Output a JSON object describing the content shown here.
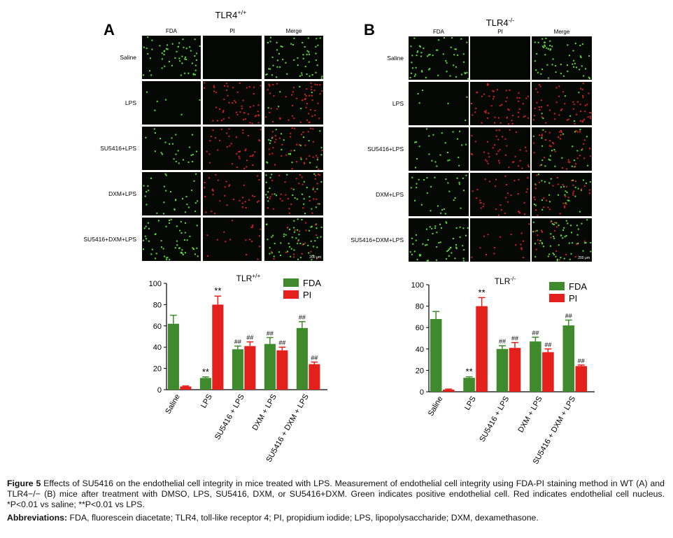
{
  "panels": [
    {
      "label": "A",
      "title": "TLR4",
      "title_sup": "+/+",
      "columns": [
        "FDA",
        "PI",
        "Merge"
      ],
      "rows": [
        "Saline",
        "LPS",
        "SU5416+LPS",
        "DXM+LPS",
        "SU5416+DXM+LPS"
      ],
      "scale_bar": "200 μm"
    },
    {
      "label": "B",
      "title": "TLR4",
      "title_sup": "-/-",
      "columns": [
        "FDA",
        "PI",
        "Merge"
      ],
      "rows": [
        "Saline",
        "LPS",
        "SU5416+LPS",
        "DXM+LPS",
        "SU5416+DXM+LPS"
      ],
      "scale_bar": "200 μm"
    }
  ],
  "chart_data": [
    {
      "type": "bar",
      "title": "TLR",
      "title_sup": "+/+",
      "categories": [
        "Saline",
        "LPS",
        "SU5416 + LPS",
        "DXM + LPS",
        "SU5416 + DXM + LPS"
      ],
      "series": [
        {
          "name": "FDA",
          "color": "#3f8a2c",
          "values": [
            62,
            11,
            38,
            43,
            58
          ],
          "errors": [
            8,
            1,
            3,
            6,
            6
          ],
          "annotations": [
            null,
            "**",
            "##",
            "##",
            "##"
          ]
        },
        {
          "name": "PI",
          "color": "#e3201b",
          "values": [
            3,
            80,
            41,
            37,
            24
          ],
          "errors": [
            0.5,
            8,
            4,
            3,
            2
          ],
          "annotations": [
            null,
            "**",
            "##",
            "##",
            "##"
          ]
        }
      ],
      "ylim": [
        0,
        100
      ],
      "yticks": [
        0,
        20,
        40,
        60,
        80,
        100
      ],
      "legend": "upper right"
    },
    {
      "type": "bar",
      "title": "TLR",
      "title_sup": "-/-",
      "categories": [
        "Saline",
        "LPS",
        "SU5416 + LPS",
        "DXM + LPS",
        "SU5416 + DXM + LPS"
      ],
      "series": [
        {
          "name": "FDA",
          "color": "#3f8a2c",
          "values": [
            68,
            13,
            40,
            47,
            62
          ],
          "errors": [
            7,
            1,
            3,
            4,
            5
          ],
          "annotations": [
            null,
            "**",
            "##",
            "##",
            "##"
          ]
        },
        {
          "name": "PI",
          "color": "#e3201b",
          "values": [
            2,
            80,
            41,
            37,
            24
          ],
          "errors": [
            0.5,
            8,
            5,
            3,
            1
          ],
          "annotations": [
            null,
            "**",
            "##",
            "##",
            "##"
          ]
        }
      ],
      "ylim": [
        0,
        100
      ],
      "yticks": [
        0,
        20,
        40,
        60,
        80,
        100
      ],
      "legend": "upper right"
    }
  ],
  "caption": {
    "label": "Figure 5",
    "text": "Effects of SU5416 on the endothelial cell integrity in mice treated with LPS. Measurement of endothelial cell integrity using FDA-PI staining method in WT (A) and TLR4−/− (B) mice after treatment with DMSO, LPS, SU5416, DXM, or SU5416+DXM. Green indicates positive endothelial cell. Red indicates endothelial cell nucleus. *P<0.01 vs saline; **P<0.01 vs LPS."
  },
  "abbreviations": {
    "label": "Abbreviations:",
    "text": "FDA, fluorescein diacetate; TLR4, toll-like receptor 4; PI, propidium iodide; LPS, lipopolysaccharide; DXM, dexamethasone."
  }
}
